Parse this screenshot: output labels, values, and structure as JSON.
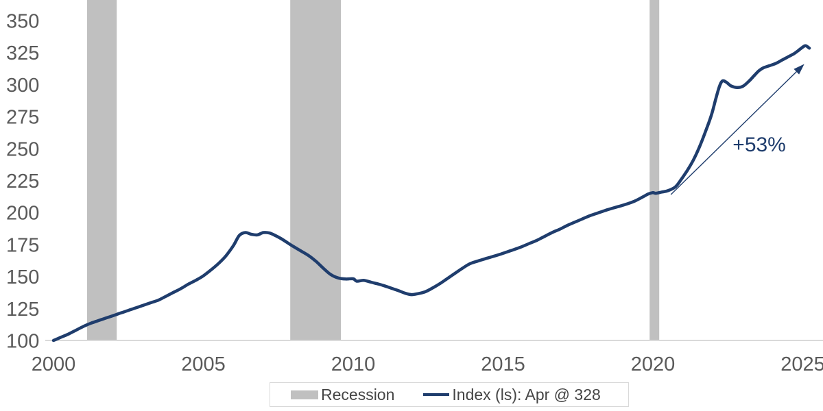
{
  "chart_data": {
    "type": "line",
    "title": "",
    "xlabel": "",
    "ylabel": "",
    "xlim": [
      2000,
      2025.7
    ],
    "ylim": [
      100,
      350
    ],
    "grid": false,
    "x_ticks": [
      "2000",
      "2005",
      "2010",
      "2015",
      "2020",
      "2025"
    ],
    "x_tick_years": [
      2000,
      2005,
      2010,
      2015,
      2020,
      2025
    ],
    "y_ticks": [
      100,
      125,
      150,
      175,
      200,
      225,
      250,
      275,
      300,
      325,
      350
    ],
    "recession_bands": [
      [
        2001.12,
        2002.11
      ],
      [
        2007.9,
        2009.59
      ],
      [
        2019.89,
        2020.21
      ]
    ],
    "series": [
      {
        "name": "Index (ls): Apr @ 328",
        "last_point_label": "Apr @ 328",
        "points": [
          [
            2000.0,
            100
          ],
          [
            2000.25,
            102.5
          ],
          [
            2000.5,
            105
          ],
          [
            2000.75,
            108
          ],
          [
            2001.0,
            111
          ],
          [
            2001.25,
            113.5
          ],
          [
            2001.5,
            115.5
          ],
          [
            2001.75,
            117.5
          ],
          [
            2002.0,
            119.5
          ],
          [
            2002.25,
            121.5
          ],
          [
            2002.5,
            123.5
          ],
          [
            2002.75,
            125.5
          ],
          [
            2003.0,
            127.5
          ],
          [
            2003.25,
            129.5
          ],
          [
            2003.5,
            131.5
          ],
          [
            2003.75,
            134.5
          ],
          [
            2004.0,
            137.5
          ],
          [
            2004.25,
            140.5
          ],
          [
            2004.5,
            144
          ],
          [
            2004.75,
            147
          ],
          [
            2005.0,
            150.5
          ],
          [
            2005.25,
            155
          ],
          [
            2005.5,
            160
          ],
          [
            2005.75,
            166
          ],
          [
            2006.0,
            174
          ],
          [
            2006.2,
            182
          ],
          [
            2006.4,
            184.3
          ],
          [
            2006.6,
            183
          ],
          [
            2006.8,
            182.5
          ],
          [
            2007.0,
            184.3
          ],
          [
            2007.2,
            184
          ],
          [
            2007.4,
            182
          ],
          [
            2007.6,
            179.5
          ],
          [
            2007.8,
            176.5
          ],
          [
            2008.0,
            173.5
          ],
          [
            2008.25,
            170
          ],
          [
            2008.5,
            166.5
          ],
          [
            2008.75,
            162
          ],
          [
            2009.0,
            156.5
          ],
          [
            2009.25,
            151.5
          ],
          [
            2009.5,
            148.8
          ],
          [
            2009.75,
            148
          ],
          [
            2010.0,
            148.2
          ],
          [
            2010.12,
            146.3
          ],
          [
            2010.35,
            147
          ],
          [
            2010.6,
            145.5
          ],
          [
            2010.8,
            144.3
          ],
          [
            2011.0,
            143
          ],
          [
            2011.25,
            141
          ],
          [
            2011.5,
            139
          ],
          [
            2011.75,
            136.8
          ],
          [
            2011.95,
            135.8
          ],
          [
            2012.15,
            136.5
          ],
          [
            2012.4,
            138
          ],
          [
            2012.65,
            141
          ],
          [
            2012.9,
            144.5
          ],
          [
            2013.15,
            148.5
          ],
          [
            2013.4,
            152.5
          ],
          [
            2013.65,
            156.5
          ],
          [
            2013.9,
            160
          ],
          [
            2014.15,
            162
          ],
          [
            2014.4,
            163.8
          ],
          [
            2014.65,
            165.5
          ],
          [
            2014.9,
            167.3
          ],
          [
            2015.15,
            169.3
          ],
          [
            2015.4,
            171.3
          ],
          [
            2015.65,
            173.5
          ],
          [
            2015.9,
            176
          ],
          [
            2016.15,
            178.5
          ],
          [
            2016.4,
            181.5
          ],
          [
            2016.65,
            184.5
          ],
          [
            2016.9,
            187
          ],
          [
            2017.15,
            190
          ],
          [
            2017.4,
            192.5
          ],
          [
            2017.65,
            195
          ],
          [
            2017.9,
            197.5
          ],
          [
            2018.15,
            199.5
          ],
          [
            2018.4,
            201.5
          ],
          [
            2018.65,
            203.3
          ],
          [
            2018.9,
            205
          ],
          [
            2019.15,
            206.8
          ],
          [
            2019.4,
            209
          ],
          [
            2019.65,
            212
          ],
          [
            2019.85,
            214.5
          ],
          [
            2020.0,
            215.5
          ],
          [
            2020.1,
            215
          ],
          [
            2020.3,
            216
          ],
          [
            2020.5,
            217
          ],
          [
            2020.75,
            220
          ],
          [
            2020.95,
            226
          ],
          [
            2021.15,
            233
          ],
          [
            2021.35,
            241
          ],
          [
            2021.55,
            251
          ],
          [
            2021.75,
            263
          ],
          [
            2021.95,
            276
          ],
          [
            2022.1,
            289
          ],
          [
            2022.22,
            298.5
          ],
          [
            2022.32,
            302.8
          ],
          [
            2022.45,
            301.8
          ],
          [
            2022.6,
            299
          ],
          [
            2022.8,
            297.7
          ],
          [
            2023.0,
            298.6
          ],
          [
            2023.2,
            302.5
          ],
          [
            2023.4,
            307.5
          ],
          [
            2023.55,
            311
          ],
          [
            2023.7,
            313.2
          ],
          [
            2023.9,
            314.8
          ],
          [
            2024.1,
            316.5
          ],
          [
            2024.3,
            319
          ],
          [
            2024.5,
            321.5
          ],
          [
            2024.7,
            324
          ],
          [
            2024.85,
            326.5
          ],
          [
            2025.0,
            329.3
          ],
          [
            2025.1,
            330.3
          ],
          [
            2025.22,
            328.4
          ]
        ]
      }
    ],
    "annotation": {
      "text": "+53%",
      "at": [
        2023.55,
        253
      ],
      "arrow_from": [
        2020.6,
        214
      ],
      "arrow_to": [
        2025.05,
        316
      ]
    },
    "legend": [
      {
        "label": "Recession",
        "swatch": "band"
      },
      {
        "label": "Index (ls): Apr @ 328",
        "swatch": "line"
      }
    ],
    "colors": {
      "line": "#1f3d6d",
      "recession_band": "#c0c0c0",
      "tick_text": "#5a5a5a",
      "legend_text": "#454545",
      "axis_line": "#dadada",
      "legend_border": "#d9d9d9",
      "annotation": "#1f3d6d",
      "background": "#ffffff"
    }
  }
}
